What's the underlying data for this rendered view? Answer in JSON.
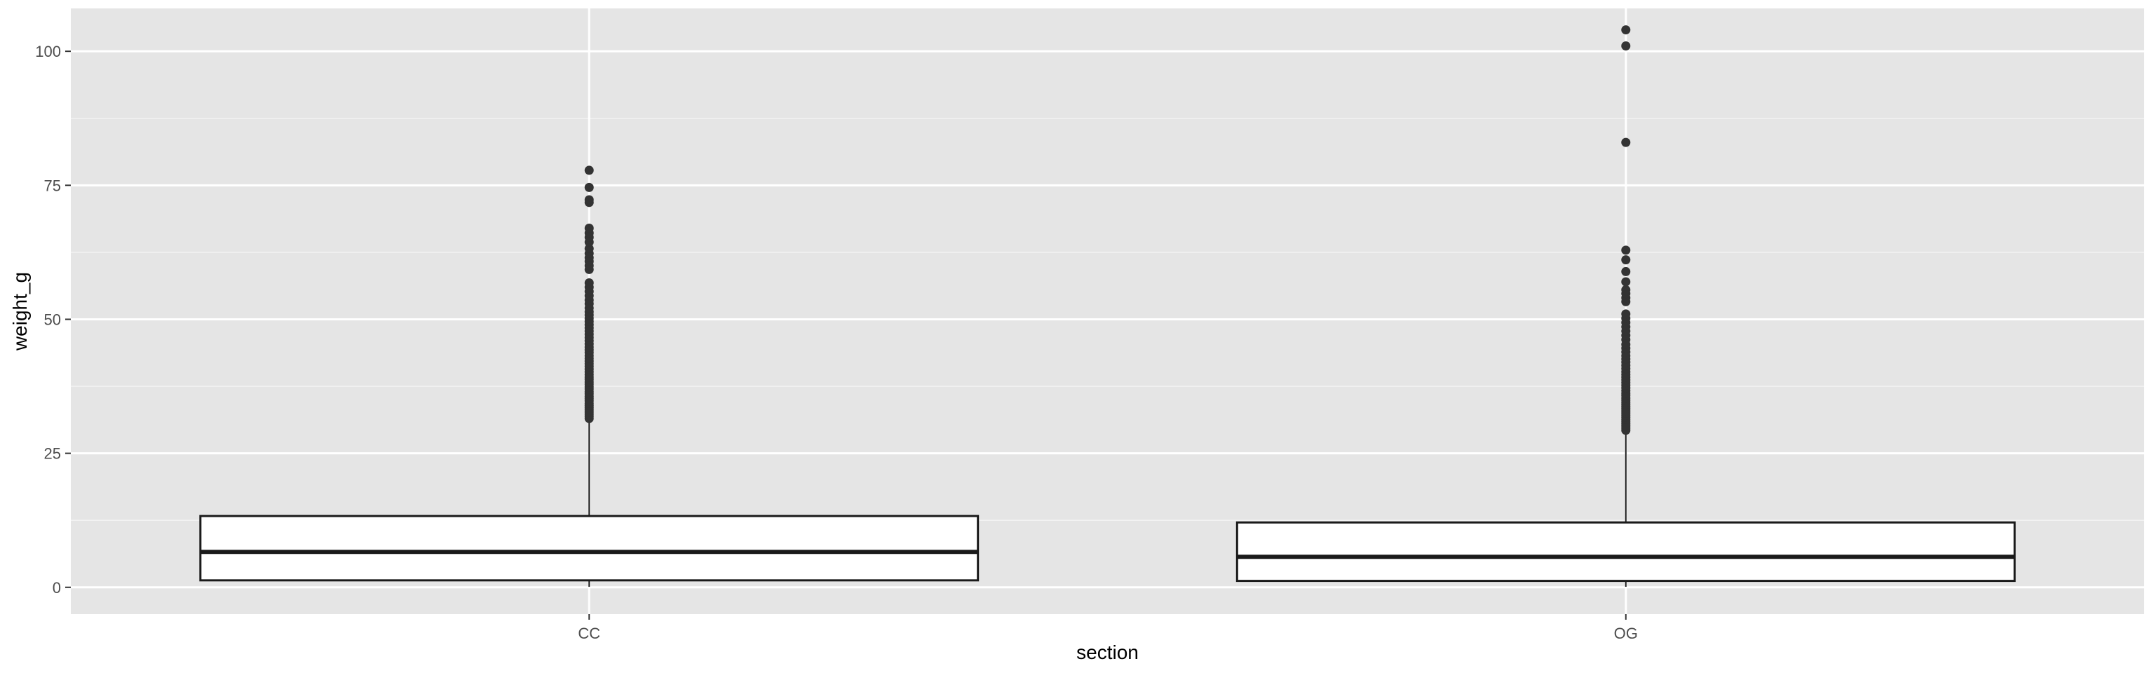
{
  "chart_data": {
    "type": "boxplot",
    "xlabel": "section",
    "ylabel": "weight_g",
    "categories": [
      "CC",
      "OG"
    ],
    "ylim": [
      -5,
      108
    ],
    "y_ticks": [
      0,
      25,
      50,
      75,
      100
    ],
    "y_minor_ticks": [
      12.5,
      37.5,
      62.5,
      87.5
    ],
    "grid": true,
    "boxes": [
      {
        "category": "CC",
        "q1": 1.3,
        "median": 6.6,
        "q3": 13.3,
        "whisker_low": 0.1,
        "whisker_high": 31.2,
        "outliers": [
          31.5,
          31.9,
          32.3,
          32.7,
          33.1,
          33.5,
          33.9,
          34.3,
          34.8,
          35.2,
          35.6,
          36.1,
          36.5,
          37.0,
          37.4,
          37.9,
          38.3,
          38.8,
          39.2,
          39.7,
          40.2,
          40.7,
          41.2,
          41.7,
          42.2,
          42.7,
          43.2,
          43.8,
          44.3,
          44.8,
          45.4,
          46.0,
          46.6,
          47.2,
          47.8,
          48.4,
          49.0,
          49.6,
          50.2,
          50.8,
          51.4,
          52.1,
          52.9,
          53.6,
          54.4,
          55.2,
          56.0,
          56.8,
          59.3,
          60.0,
          60.8,
          61.5,
          62.3,
          63.2,
          64.4,
          65.3,
          66.1,
          67.0,
          71.8,
          72.3,
          74.6,
          77.8
        ]
      },
      {
        "category": "OG",
        "q1": 1.2,
        "median": 5.7,
        "q3": 12.1,
        "whisker_low": 0.1,
        "whisker_high": 29.0,
        "outliers": [
          29.3,
          29.7,
          30.1,
          30.5,
          30.9,
          31.3,
          31.7,
          32.1,
          32.5,
          32.9,
          33.3,
          33.7,
          34.1,
          34.5,
          34.9,
          35.3,
          35.8,
          36.2,
          36.7,
          37.2,
          37.7,
          38.2,
          38.7,
          39.2,
          39.7,
          40.2,
          40.8,
          41.4,
          42.0,
          42.6,
          43.2,
          43.9,
          44.6,
          45.3,
          46.2,
          47.0,
          47.8,
          48.6,
          49.4,
          50.2,
          51.0,
          53.3,
          54.0,
          54.8,
          55.5,
          57.0,
          58.9,
          61.1,
          62.9,
          83.0,
          101.0,
          104.0
        ]
      }
    ]
  }
}
